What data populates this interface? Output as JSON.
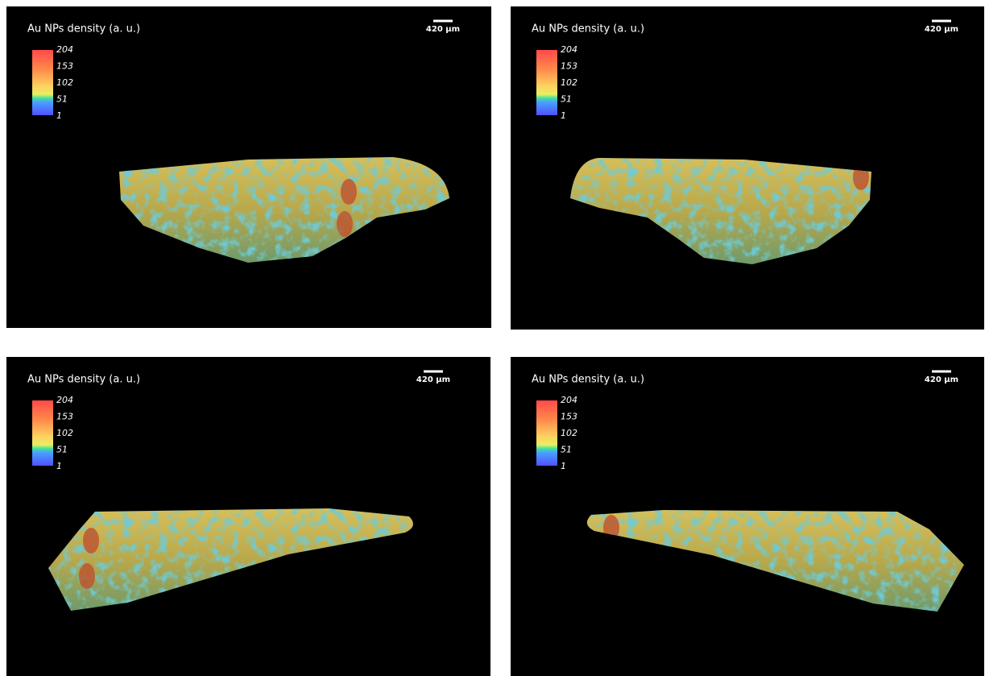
{
  "panels": [
    {
      "title": "Au NPs density (a. u.)",
      "colorbar_ticks": [
        "204",
        "153",
        "102",
        "51",
        "1"
      ],
      "scale_bar": "420 µm"
    },
    {
      "title": "Au NPs density (a. u.)",
      "colorbar_ticks": [
        "204",
        "153",
        "102",
        "51",
        "1"
      ],
      "scale_bar": "420 µm"
    },
    {
      "title": "Au NPs density (a. u.)",
      "colorbar_ticks": [
        "204",
        "153",
        "102",
        "51",
        "1"
      ],
      "scale_bar": "420 µm"
    },
    {
      "title": "Au NPs density (a. u.)",
      "colorbar_ticks": [
        "204",
        "153",
        "102",
        "51",
        "1"
      ],
      "scale_bar": "420 µm"
    }
  ]
}
